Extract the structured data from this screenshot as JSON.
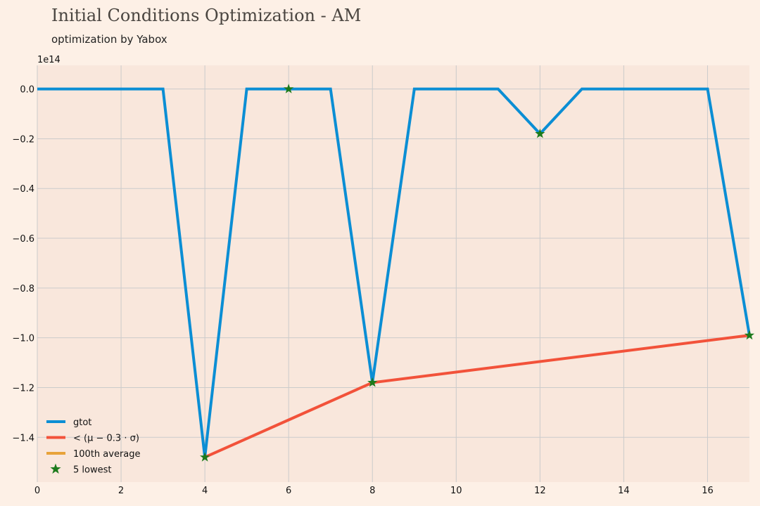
{
  "chart_data": {
    "type": "line",
    "title": "Initial Conditions Optimization - AM",
    "subtitle": "optimization by Yabox",
    "y_offset_label": "1e14",
    "xlim": [
      0,
      17
    ],
    "ylim": [
      -1.58,
      0.095
    ],
    "x_ticks": [
      0,
      2,
      4,
      6,
      8,
      10,
      12,
      14,
      16
    ],
    "y_ticks": [
      0.0,
      -0.2,
      -0.4,
      -0.6,
      -0.8,
      -1.0,
      -1.2,
      -1.4
    ],
    "y_tick_labels": [
      "0.0",
      "−0.2",
      "−0.4",
      "−0.6",
      "−0.8",
      "−1.0",
      "−1.2",
      "−1.4"
    ],
    "grid": true,
    "legend_position": "lower-left",
    "series": [
      {
        "name": "gtot",
        "color": "#0b8ed4",
        "x": [
          0,
          1,
          2,
          3,
          4,
          5,
          6,
          7,
          8,
          9,
          10,
          11,
          12,
          13,
          14,
          15,
          16,
          17
        ],
        "y": [
          0,
          0,
          0,
          0,
          -1.48,
          0,
          0,
          0,
          -1.18,
          0,
          0,
          0,
          -0.18,
          0,
          0,
          0,
          0,
          -0.99
        ]
      },
      {
        "name": "< (μ − 0.3 · σ)",
        "color": "#f2523a",
        "x": [
          4,
          8,
          17
        ],
        "y": [
          -1.48,
          -1.18,
          -0.99
        ]
      },
      {
        "name": "100th average",
        "color": "#e8a33a",
        "x": [],
        "y": []
      }
    ],
    "markers": {
      "name": "5 lowest",
      "color": "#1c7a1c",
      "x": [
        4,
        6,
        8,
        12,
        17
      ],
      "y": [
        -1.48,
        0,
        -1.18,
        -0.18,
        -0.99
      ]
    }
  }
}
